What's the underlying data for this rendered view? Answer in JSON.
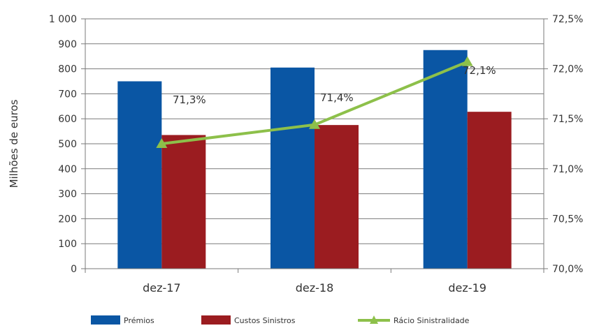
{
  "chart_data": {
    "type": "bar",
    "categories": [
      "dez-17",
      "dez-18",
      "dez-19"
    ],
    "ylabel": "Milhões de euros",
    "ylim": [
      0,
      1000
    ],
    "y_ticks": [
      "0",
      "100",
      "200",
      "300",
      "400",
      "500",
      "600",
      "700",
      "800",
      "900",
      "1 000"
    ],
    "y2lim": [
      70.0,
      72.5
    ],
    "y2_ticks": [
      "70,0%",
      "70,5%",
      "71,0%",
      "71,5%",
      "72,0%",
      "72,5%"
    ],
    "grid": true,
    "legend_position": "bottom",
    "series": [
      {
        "name": "Prémios",
        "type": "bar",
        "axis": "left",
        "color": "#0a56a4",
        "values": [
          750,
          805,
          875
        ]
      },
      {
        "name": "Custos Sinistros",
        "type": "bar",
        "axis": "left",
        "color": "#9b1c20",
        "values": [
          535,
          575,
          628
        ]
      },
      {
        "name": "Rácio Sinistralidade",
        "type": "line",
        "axis": "right",
        "color": "#8dc04a",
        "marker": "triangle",
        "values": [
          71.25,
          71.44,
          72.07
        ],
        "data_labels": [
          "71,3%",
          "71,4%",
          "72,1%"
        ]
      }
    ]
  }
}
